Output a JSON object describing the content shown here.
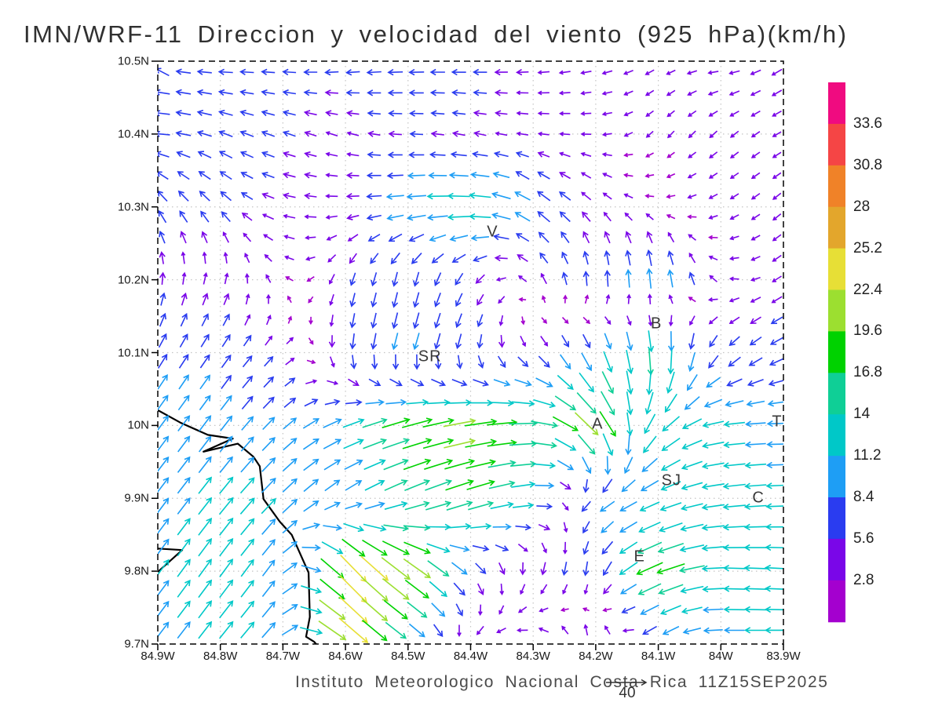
{
  "title": {
    "text": "IMN/WRF-11 Direccion y velocidad del viento (925 hPa)(km/h)"
  },
  "caption": {
    "text": "Instituto Meteorologico Nacional Costa Rica  11Z15SEP2025"
  },
  "reference_vector": {
    "value": "40"
  },
  "axes": {
    "lat_ticks": [
      "10.5N",
      "10.4N",
      "10.3N",
      "10.2N",
      "10.1N",
      "10N",
      "9.9N",
      "9.8N",
      "9.7N"
    ],
    "lon_ticks": [
      "84.9W",
      "84.8W",
      "84.7W",
      "84.6W",
      "84.5W",
      "84.4W",
      "84.3W",
      "84.2W",
      "84.1W",
      "84W",
      "83.9W"
    ]
  },
  "colorbar": {
    "labels_top_to_bottom": [
      "33.6",
      "30.8",
      "28",
      "25.2",
      "22.4",
      "19.6",
      "16.8",
      "14",
      "11.2",
      "8.4",
      "5.6",
      "2.8"
    ]
  },
  "stations": [
    {
      "label": "V",
      "lon": -84.365,
      "lat": 10.265
    },
    {
      "label": "SR",
      "lon": -84.465,
      "lat": 10.094
    },
    {
      "label": "B",
      "lon": -84.103,
      "lat": 10.139
    },
    {
      "label": "A",
      "lon": -84.197,
      "lat": 10.002
    },
    {
      "label": "SJ",
      "lon": -84.079,
      "lat": 9.924
    },
    {
      "label": "C",
      "lon": -83.94,
      "lat": 9.9
    },
    {
      "label": "E",
      "lon": -84.13,
      "lat": 9.819
    },
    {
      "label": "T",
      "lon": -83.91,
      "lat": 10.005
    }
  ],
  "chart_data": {
    "type": "vector_field",
    "title": "IMN/WRF-11 Direccion y velocidad del viento (925 hPa)(km/h)",
    "units": "km/h",
    "level": "925 hPa",
    "valid_time": "11Z15SEP2025",
    "lon_range": [
      -84.9,
      -83.9
    ],
    "lat_range": [
      9.7,
      10.5
    ],
    "grid_on": true,
    "grid_step_deg": 0.1,
    "reference_speed": 40,
    "speed_levels": [
      2.8,
      5.6,
      8.4,
      11.2,
      14,
      16.8,
      19.6,
      22.4,
      25.2,
      28,
      30.8,
      33.6
    ],
    "speed_colors_ascending": [
      "#a400cf",
      "#7a06e8",
      "#2a3cf0",
      "#1e9ef5",
      "#00c8c8",
      "#0fcf96",
      "#00d200",
      "#9cdf30",
      "#e7df36",
      "#e3a62c",
      "#f08228",
      "#f54545",
      "#f00b80"
    ],
    "sample_lons": [
      -84.9,
      -84.8,
      -84.7,
      -84.6,
      -84.5,
      -84.4,
      -84.3,
      -84.2,
      -84.1,
      -84.0,
      -83.9
    ],
    "sample_lats": [
      10.5,
      10.4,
      10.3,
      10.2,
      10.1,
      10.0,
      9.9,
      9.8,
      9.7
    ],
    "u": [
      [
        -8,
        -8,
        -7,
        -8,
        -9,
        -8,
        -6,
        -5,
        -4,
        -5,
        -6
      ],
      [
        -9,
        -7,
        -6,
        -5,
        -7,
        -6,
        -5,
        -4,
        -3,
        -4,
        -4
      ],
      [
        -3,
        -4,
        -6,
        -6,
        -13,
        -17,
        -7,
        -3,
        -3,
        -4,
        -4
      ],
      [
        2,
        3,
        -2,
        -4,
        -4,
        -6,
        -2,
        2,
        2,
        -3,
        -5
      ],
      [
        7,
        7,
        5,
        -3,
        -6,
        -4,
        3,
        2,
        -3,
        -7,
        -9
      ],
      [
        10,
        10,
        9,
        15,
        24,
        26,
        20,
        12,
        -14,
        -15,
        -12
      ],
      [
        10,
        12,
        12,
        10,
        18,
        22,
        15,
        -10,
        -14,
        -16,
        -14
      ],
      [
        11,
        12,
        10,
        14,
        18,
        5,
        -4,
        -3,
        -24,
        -14,
        -16
      ],
      [
        10,
        12,
        11,
        19,
        8,
        -6,
        -5,
        2,
        -8,
        -12,
        -16
      ]
    ],
    "v": [
      [
        4,
        2,
        2,
        1,
        2,
        2,
        1,
        0,
        -1,
        1,
        -2
      ],
      [
        3,
        5,
        4,
        3,
        2,
        3,
        2,
        1,
        -2,
        -2,
        -1
      ],
      [
        8,
        7,
        3,
        1,
        2,
        5,
        9,
        5,
        1,
        -1,
        -2
      ],
      [
        6,
        5,
        3,
        -6,
        -8,
        -5,
        5,
        9,
        14,
        2,
        -2
      ],
      [
        7,
        6,
        3,
        -9,
        -10,
        -8,
        -7,
        -13,
        -21,
        -5,
        -2
      ],
      [
        8,
        8,
        5,
        2,
        1,
        -2,
        -5,
        -24,
        -9,
        2,
        3
      ],
      [
        8,
        9,
        7,
        4,
        3,
        2,
        -2,
        -4,
        -2,
        2,
        3
      ],
      [
        9,
        10,
        8,
        -27,
        -22,
        -8,
        -6,
        -8,
        -3,
        4,
        5
      ],
      [
        8,
        9,
        7,
        -26,
        -10,
        -3,
        4,
        9,
        -4,
        3,
        4
      ]
    ],
    "coastline": [
      [
        -84.9,
        10.021
      ],
      [
        -84.864,
        10.004
      ],
      [
        -84.82,
        9.987
      ],
      [
        -84.78,
        9.982
      ],
      [
        -84.827,
        9.964
      ],
      [
        -84.772,
        9.975
      ],
      [
        -84.747,
        9.957
      ],
      [
        -84.737,
        9.944
      ],
      [
        -84.731,
        9.899
      ],
      [
        -84.705,
        9.868
      ],
      [
        -84.686,
        9.85
      ],
      [
        -84.659,
        9.798
      ],
      [
        -84.657,
        9.737
      ],
      [
        -84.663,
        9.71
      ],
      [
        -84.65,
        9.703
      ],
      [
        -84.644,
        9.697
      ]
    ],
    "coastline_secondary": [
      [
        -84.9,
        9.831
      ],
      [
        -84.861,
        9.829
      ],
      [
        -84.9,
        9.799
      ]
    ]
  }
}
